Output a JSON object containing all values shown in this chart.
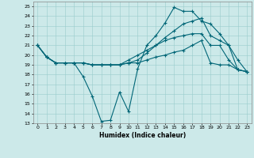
{
  "title": "",
  "xlabel": "Humidex (Indice chaleur)",
  "background_color": "#cce9e9",
  "line_color": "#006677",
  "xlim": [
    -0.5,
    23.5
  ],
  "ylim": [
    13,
    25.5
  ],
  "xticks": [
    0,
    1,
    2,
    3,
    4,
    5,
    6,
    7,
    8,
    9,
    10,
    11,
    12,
    13,
    14,
    15,
    16,
    17,
    18,
    19,
    20,
    21,
    22,
    23
  ],
  "yticks": [
    13,
    14,
    15,
    16,
    17,
    18,
    19,
    20,
    21,
    22,
    23,
    24,
    25
  ],
  "line1_x": [
    0,
    1,
    2,
    3,
    4,
    5,
    6,
    7,
    8,
    9,
    10,
    11,
    12,
    13,
    14,
    15,
    16,
    17,
    18,
    19,
    20,
    21,
    22,
    23
  ],
  "line1_y": [
    21.0,
    19.8,
    19.2,
    19.2,
    19.2,
    17.8,
    15.8,
    13.2,
    13.3,
    16.2,
    14.2,
    18.6,
    21.0,
    22.0,
    23.3,
    24.9,
    24.5,
    24.5,
    23.5,
    23.2,
    22.2,
    21.0,
    18.5,
    18.3
  ],
  "line2_x": [
    0,
    1,
    2,
    3,
    4,
    5,
    6,
    7,
    8,
    9,
    10,
    11,
    12,
    13,
    14,
    15,
    16,
    17,
    18,
    19,
    20,
    21,
    22,
    23
  ],
  "line2_y": [
    21.0,
    19.8,
    19.2,
    19.2,
    19.2,
    19.2,
    19.0,
    19.0,
    19.0,
    19.0,
    19.2,
    19.5,
    20.2,
    21.0,
    21.8,
    22.5,
    23.2,
    23.5,
    23.8,
    22.0,
    21.5,
    21.0,
    19.5,
    18.3
  ],
  "line3_x": [
    0,
    1,
    2,
    3,
    4,
    5,
    6,
    7,
    8,
    9,
    10,
    11,
    12,
    13,
    14,
    15,
    16,
    17,
    18,
    19,
    20,
    21,
    22,
    23
  ],
  "line3_y": [
    21.0,
    19.8,
    19.2,
    19.2,
    19.2,
    19.2,
    19.0,
    19.0,
    19.0,
    19.0,
    19.5,
    20.0,
    20.5,
    21.0,
    21.5,
    21.8,
    22.0,
    22.2,
    22.2,
    21.0,
    21.0,
    19.5,
    18.5,
    18.3
  ],
  "line4_x": [
    0,
    1,
    2,
    3,
    4,
    5,
    6,
    7,
    8,
    9,
    10,
    11,
    12,
    13,
    14,
    15,
    16,
    17,
    18,
    19,
    20,
    21,
    22,
    23
  ],
  "line4_y": [
    21.0,
    19.8,
    19.2,
    19.2,
    19.2,
    19.2,
    19.0,
    19.0,
    19.0,
    19.0,
    19.2,
    19.2,
    19.5,
    19.8,
    20.0,
    20.3,
    20.5,
    21.0,
    21.5,
    19.2,
    19.0,
    19.0,
    18.5,
    18.3
  ]
}
